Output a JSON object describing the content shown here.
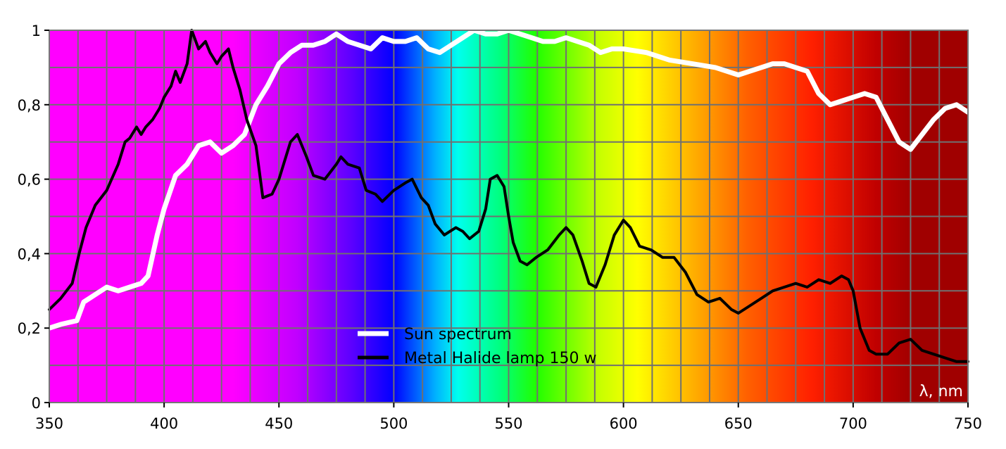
{
  "chart_data": {
    "type": "line",
    "xlabel": "λ, nm",
    "ylabel": "",
    "xlim": [
      350,
      750
    ],
    "ylim": [
      0,
      1
    ],
    "x_ticks": [
      "350",
      "400",
      "450",
      "500",
      "550",
      "600",
      "650",
      "700",
      "750"
    ],
    "y_ticks": [
      "0",
      "0,2",
      "0,4",
      "0,6",
      "0,8",
      "1"
    ],
    "grid": true,
    "background": "visible-spectrum color gradient",
    "legend": {
      "placement": "bottom-center",
      "entries": [
        "Sun spectrum",
        "Metal Halide lamp 150 w"
      ]
    },
    "series": [
      {
        "name": "Sun spectrum",
        "color": "#ffffff",
        "points": [
          [
            350,
            0.2
          ],
          [
            355,
            0.21
          ],
          [
            362,
            0.22
          ],
          [
            365,
            0.27
          ],
          [
            370,
            0.29
          ],
          [
            375,
            0.31
          ],
          [
            380,
            0.3
          ],
          [
            385,
            0.31
          ],
          [
            390,
            0.32
          ],
          [
            393,
            0.34
          ],
          [
            397,
            0.45
          ],
          [
            400,
            0.52
          ],
          [
            405,
            0.61
          ],
          [
            410,
            0.64
          ],
          [
            415,
            0.69
          ],
          [
            420,
            0.7
          ],
          [
            425,
            0.67
          ],
          [
            430,
            0.69
          ],
          [
            435,
            0.72
          ],
          [
            440,
            0.8
          ],
          [
            445,
            0.85
          ],
          [
            450,
            0.91
          ],
          [
            455,
            0.94
          ],
          [
            460,
            0.96
          ],
          [
            465,
            0.96
          ],
          [
            470,
            0.97
          ],
          [
            475,
            0.99
          ],
          [
            480,
            0.97
          ],
          [
            485,
            0.96
          ],
          [
            490,
            0.95
          ],
          [
            495,
            0.98
          ],
          [
            500,
            0.97
          ],
          [
            505,
            0.97
          ],
          [
            510,
            0.98
          ],
          [
            515,
            0.95
          ],
          [
            520,
            0.94
          ],
          [
            525,
            0.96
          ],
          [
            530,
            0.98
          ],
          [
            535,
            1.0
          ],
          [
            540,
            0.99
          ],
          [
            545,
            0.99
          ],
          [
            550,
            1.0
          ],
          [
            555,
            0.99
          ],
          [
            560,
            0.98
          ],
          [
            565,
            0.97
          ],
          [
            570,
            0.97
          ],
          [
            575,
            0.98
          ],
          [
            580,
            0.97
          ],
          [
            585,
            0.96
          ],
          [
            590,
            0.94
          ],
          [
            595,
            0.95
          ],
          [
            600,
            0.95
          ],
          [
            610,
            0.94
          ],
          [
            620,
            0.92
          ],
          [
            630,
            0.91
          ],
          [
            640,
            0.9
          ],
          [
            650,
            0.88
          ],
          [
            655,
            0.89
          ],
          [
            660,
            0.9
          ],
          [
            665,
            0.91
          ],
          [
            670,
            0.91
          ],
          [
            675,
            0.9
          ],
          [
            680,
            0.89
          ],
          [
            685,
            0.83
          ],
          [
            690,
            0.8
          ],
          [
            695,
            0.81
          ],
          [
            700,
            0.82
          ],
          [
            705,
            0.83
          ],
          [
            710,
            0.82
          ],
          [
            715,
            0.76
          ],
          [
            720,
            0.7
          ],
          [
            725,
            0.68
          ],
          [
            730,
            0.72
          ],
          [
            735,
            0.76
          ],
          [
            740,
            0.79
          ],
          [
            745,
            0.8
          ],
          [
            750,
            0.78
          ]
        ]
      },
      {
        "name": "Metal Halide lamp 150 w",
        "color": "#000000",
        "points": [
          [
            350,
            0.25
          ],
          [
            355,
            0.28
          ],
          [
            360,
            0.32
          ],
          [
            363,
            0.4
          ],
          [
            366,
            0.47
          ],
          [
            370,
            0.53
          ],
          [
            375,
            0.57
          ],
          [
            380,
            0.64
          ],
          [
            383,
            0.7
          ],
          [
            385,
            0.71
          ],
          [
            388,
            0.74
          ],
          [
            390,
            0.72
          ],
          [
            392,
            0.74
          ],
          [
            395,
            0.76
          ],
          [
            398,
            0.79
          ],
          [
            400,
            0.82
          ],
          [
            403,
            0.85
          ],
          [
            405,
            0.89
          ],
          [
            407,
            0.86
          ],
          [
            410,
            0.91
          ],
          [
            412,
            1.0
          ],
          [
            415,
            0.95
          ],
          [
            418,
            0.97
          ],
          [
            420,
            0.94
          ],
          [
            423,
            0.91
          ],
          [
            425,
            0.93
          ],
          [
            428,
            0.95
          ],
          [
            430,
            0.9
          ],
          [
            433,
            0.84
          ],
          [
            436,
            0.76
          ],
          [
            440,
            0.69
          ],
          [
            443,
            0.55
          ],
          [
            447,
            0.56
          ],
          [
            450,
            0.6
          ],
          [
            455,
            0.7
          ],
          [
            458,
            0.72
          ],
          [
            462,
            0.66
          ],
          [
            465,
            0.61
          ],
          [
            470,
            0.6
          ],
          [
            475,
            0.64
          ],
          [
            477,
            0.66
          ],
          [
            480,
            0.64
          ],
          [
            485,
            0.63
          ],
          [
            488,
            0.57
          ],
          [
            492,
            0.56
          ],
          [
            495,
            0.54
          ],
          [
            500,
            0.57
          ],
          [
            505,
            0.59
          ],
          [
            508,
            0.6
          ],
          [
            512,
            0.55
          ],
          [
            515,
            0.53
          ],
          [
            518,
            0.48
          ],
          [
            522,
            0.45
          ],
          [
            527,
            0.47
          ],
          [
            530,
            0.46
          ],
          [
            533,
            0.44
          ],
          [
            537,
            0.46
          ],
          [
            540,
            0.52
          ],
          [
            542,
            0.6
          ],
          [
            545,
            0.61
          ],
          [
            548,
            0.58
          ],
          [
            550,
            0.5
          ],
          [
            552,
            0.43
          ],
          [
            555,
            0.38
          ],
          [
            558,
            0.37
          ],
          [
            562,
            0.39
          ],
          [
            567,
            0.41
          ],
          [
            572,
            0.45
          ],
          [
            575,
            0.47
          ],
          [
            578,
            0.45
          ],
          [
            582,
            0.38
          ],
          [
            585,
            0.32
          ],
          [
            588,
            0.31
          ],
          [
            592,
            0.37
          ],
          [
            596,
            0.45
          ],
          [
            600,
            0.49
          ],
          [
            603,
            0.47
          ],
          [
            607,
            0.42
          ],
          [
            612,
            0.41
          ],
          [
            617,
            0.39
          ],
          [
            622,
            0.39
          ],
          [
            627,
            0.35
          ],
          [
            632,
            0.29
          ],
          [
            637,
            0.27
          ],
          [
            642,
            0.28
          ],
          [
            647,
            0.25
          ],
          [
            650,
            0.24
          ],
          [
            655,
            0.26
          ],
          [
            660,
            0.28
          ],
          [
            665,
            0.3
          ],
          [
            670,
            0.31
          ],
          [
            675,
            0.32
          ],
          [
            680,
            0.31
          ],
          [
            685,
            0.33
          ],
          [
            690,
            0.32
          ],
          [
            695,
            0.34
          ],
          [
            698,
            0.33
          ],
          [
            700,
            0.3
          ],
          [
            703,
            0.2
          ],
          [
            707,
            0.14
          ],
          [
            710,
            0.13
          ],
          [
            715,
            0.13
          ],
          [
            720,
            0.16
          ],
          [
            725,
            0.17
          ],
          [
            730,
            0.14
          ],
          [
            735,
            0.13
          ],
          [
            740,
            0.12
          ],
          [
            745,
            0.11
          ],
          [
            750,
            0.11
          ]
        ]
      }
    ]
  }
}
